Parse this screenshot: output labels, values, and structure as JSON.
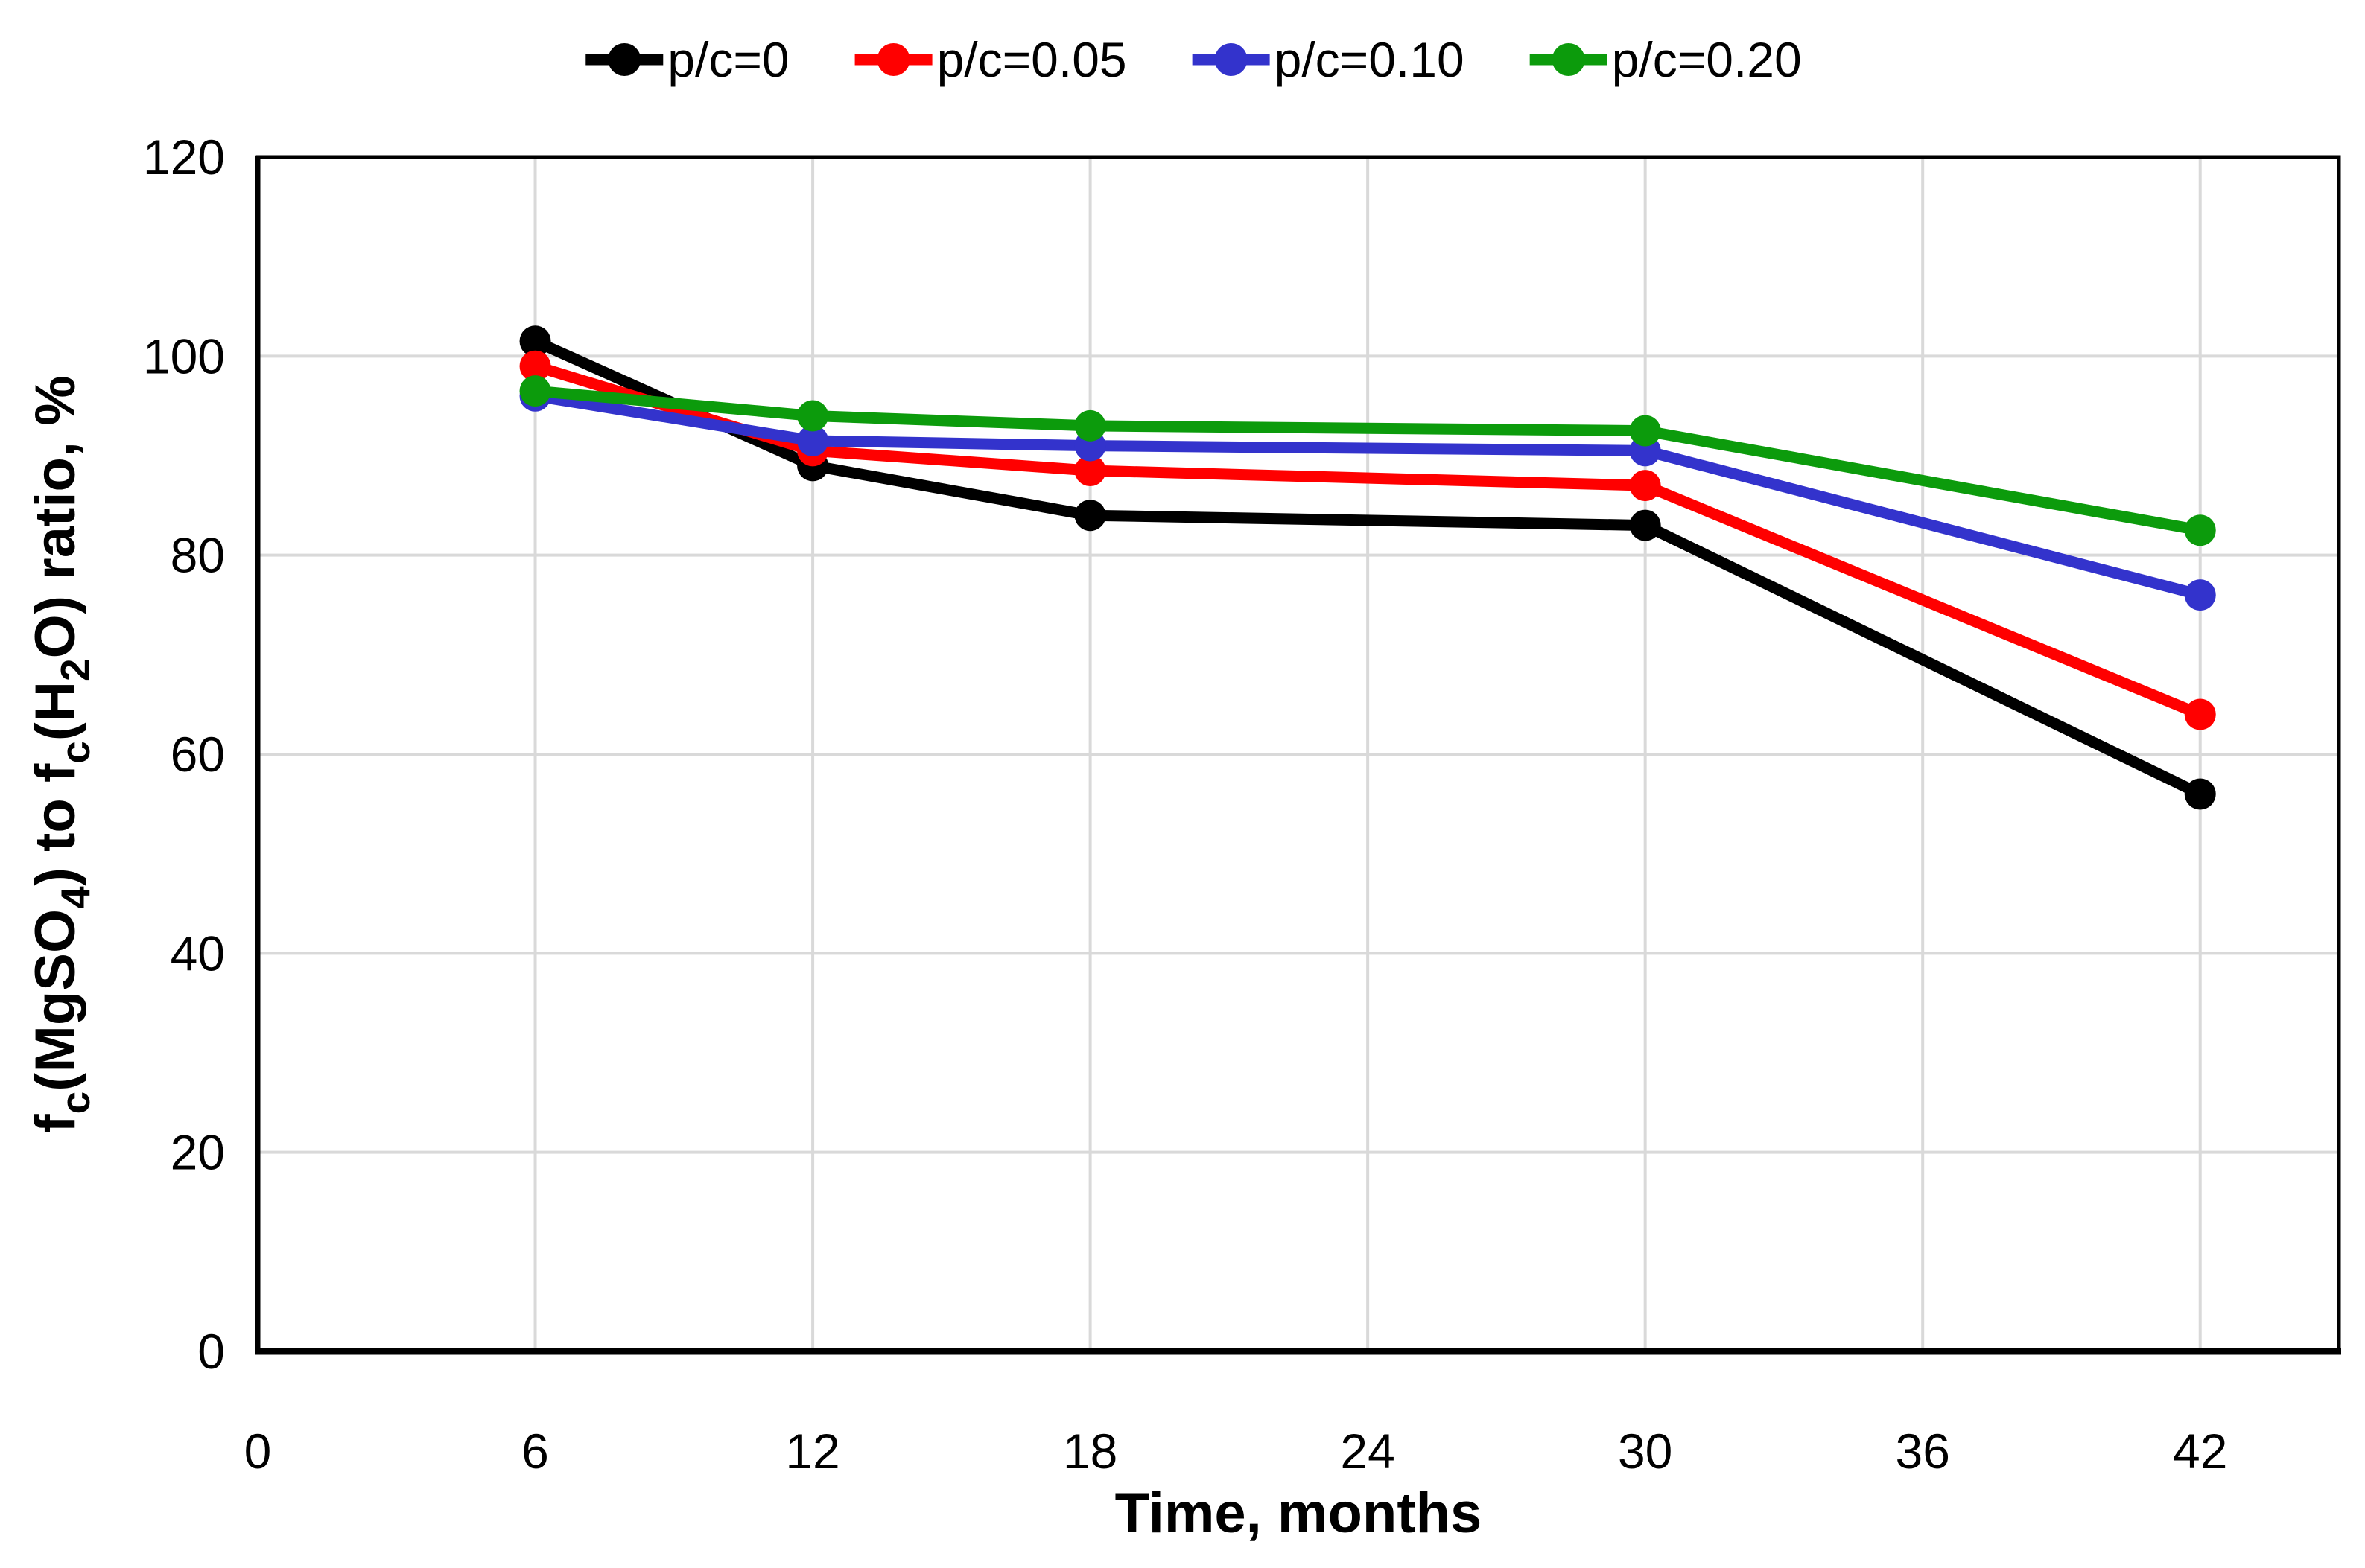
{
  "chart_data": {
    "type": "line",
    "title": "",
    "xlabel": "Time, months",
    "ylabel_plain": "fc(MgSO4) to fc(H2O) ratio, %",
    "ylabel_parts": [
      {
        "t": "f"
      },
      {
        "t": "c",
        "sub": true
      },
      {
        "t": "(MgSO"
      },
      {
        "t": "4",
        "sub": true
      },
      {
        "t": ") to f"
      },
      {
        "t": "c",
        "sub": true
      },
      {
        "t": "(H"
      },
      {
        "t": "2",
        "sub": true
      },
      {
        "t": "O) ratio,  %"
      }
    ],
    "x": [
      6,
      12,
      18,
      30,
      42
    ],
    "x_tick_values": [
      0,
      6,
      12,
      18,
      24,
      30,
      36,
      42
    ],
    "x_tick_labels": [
      "0",
      "6",
      "12",
      "18",
      "24",
      "30",
      "36",
      "42"
    ],
    "xlim": [
      0,
      45
    ],
    "y_tick_values": [
      0,
      20,
      40,
      60,
      80,
      100,
      120
    ],
    "y_tick_labels": [
      "0",
      "20",
      "40",
      "60",
      "80",
      "100",
      "120"
    ],
    "ylim": [
      0,
      120
    ],
    "grid": true,
    "grid_color": "#d9d9d9",
    "axis_color": "#000000",
    "background": "#ffffff",
    "legend_position": "top-center",
    "series": [
      {
        "name": "p/c=0",
        "color": "#000000",
        "values": [
          101.5,
          89,
          84,
          83,
          56
        ]
      },
      {
        "name": "p/c=0.05",
        "color": "#ff0000",
        "values": [
          99,
          90.5,
          88.5,
          87,
          64
        ]
      },
      {
        "name": "p/c=0.10",
        "color": "#3333cc",
        "values": [
          96,
          91.5,
          91,
          90.5,
          76
        ]
      },
      {
        "name": "p/c=0.20",
        "color": "#0c9b0c",
        "values": [
          96.5,
          94,
          93,
          92.5,
          82.5
        ]
      }
    ]
  }
}
